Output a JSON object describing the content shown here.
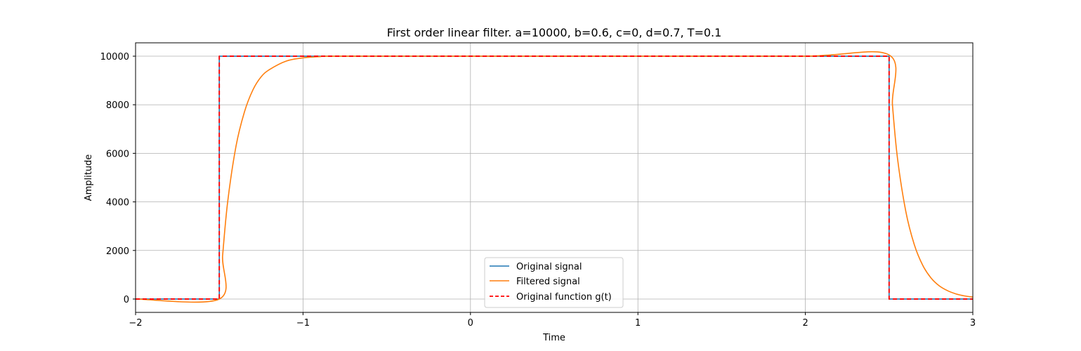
{
  "chart_data": {
    "type": "line",
    "title": "First order linear filter. a=10000, b=0.6, c=0, d=0.7, T=0.1",
    "xlabel": "Time",
    "ylabel": "Amplitude",
    "xlim": [
      -2,
      3
    ],
    "ylim": [
      -550,
      10550
    ],
    "xticks": [
      -2,
      -1,
      0,
      1,
      2,
      3
    ],
    "xtick_labels": [
      "−2",
      "−1",
      "0",
      "1",
      "2",
      "3"
    ],
    "yticks": [
      0,
      2000,
      4000,
      6000,
      8000,
      10000
    ],
    "ytick_labels": [
      "0",
      "2000",
      "4000",
      "6000",
      "8000",
      "10000"
    ],
    "grid": true,
    "legend_position": "lower center",
    "series": [
      {
        "name": "Original signal",
        "color": "#1f77b4",
        "style": "solid",
        "x": [
          -2,
          -1.5,
          -1.5,
          2.5,
          2.5,
          3
        ],
        "y": [
          0,
          0,
          10000,
          10000,
          0,
          0
        ]
      },
      {
        "name": "Filtered signal",
        "color": "#ff7f0e",
        "style": "solid",
        "x": [
          -2,
          -1.5,
          -1.48,
          -1.45,
          -1.4,
          -1.35,
          -1.3,
          -1.25,
          -1.2,
          -1.1,
          -1.0,
          -0.9,
          -0.8,
          0,
          1,
          2,
          2.5,
          2.52,
          2.55,
          2.6,
          2.65,
          2.7,
          2.75,
          2.8,
          2.85,
          2.9,
          2.95,
          3
        ],
        "y": [
          0,
          0,
          1800,
          4000,
          6300,
          7700,
          8600,
          9150,
          9450,
          9800,
          9930,
          9980,
          10000,
          10000,
          10000,
          10000,
          10050,
          8000,
          5800,
          3600,
          2250,
          1400,
          870,
          540,
          340,
          210,
          130,
          80
        ]
      },
      {
        "name": "Original function g(t)",
        "color": "#ff0000",
        "style": "dashed",
        "x": [
          -2,
          -1.5,
          -1.5,
          2.5,
          2.5,
          3
        ],
        "y": [
          0,
          0,
          10000,
          10000,
          0,
          0
        ]
      }
    ]
  }
}
